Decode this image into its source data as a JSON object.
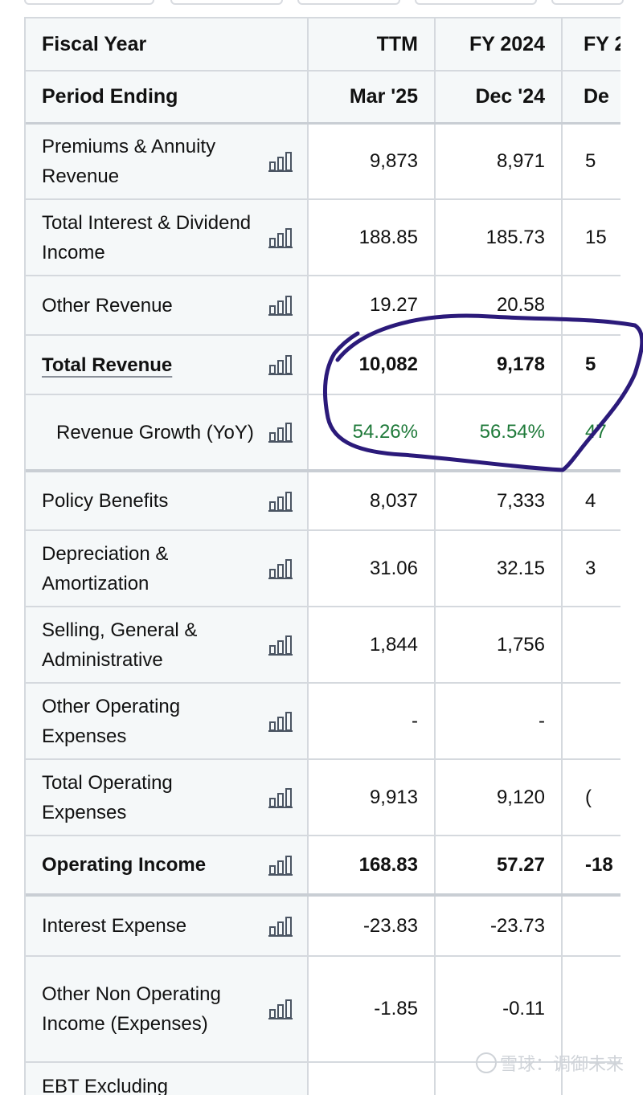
{
  "columns": {
    "fiscal_year_label": "Fiscal Year",
    "period_ending_label": "Period Ending",
    "fiscal_years": [
      "TTM",
      "FY 2024",
      "FY 2"
    ],
    "periods": [
      "Mar '25",
      "Dec '24",
      "De"
    ]
  },
  "rows": [
    {
      "label": "Premiums & Annuity Revenue",
      "ttm": "9,873",
      "fy2024": "8,971",
      "fy_prev": "5"
    },
    {
      "label": "Total Interest & Dividend Income",
      "ttm": "188.85",
      "fy2024": "185.73",
      "fy_prev": "15"
    },
    {
      "label": "Other Revenue",
      "ttm": "19.27",
      "fy2024": "20.58",
      "fy_prev": ""
    },
    {
      "label": "Total Revenue",
      "ttm": "10,082",
      "fy2024": "9,178",
      "fy_prev": "5"
    },
    {
      "label": "Revenue Growth (YoY)",
      "ttm": "54.26%",
      "fy2024": "56.54%",
      "fy_prev": "47"
    },
    {
      "label": "Policy Benefits",
      "ttm": "8,037",
      "fy2024": "7,333",
      "fy_prev": "4"
    },
    {
      "label": "Depreciation & Amortization",
      "ttm": "31.06",
      "fy2024": "32.15",
      "fy_prev": "3"
    },
    {
      "label": "Selling, General & Administrative",
      "ttm": "1,844",
      "fy2024": "1,756",
      "fy_prev": ""
    },
    {
      "label": "Other Operating Expenses",
      "ttm": "-",
      "fy2024": "-",
      "fy_prev": ""
    },
    {
      "label": "Total Operating Expenses",
      "ttm": "9,913",
      "fy2024": "9,120",
      "fy_prev": "("
    },
    {
      "label": "Operating Income",
      "ttm": "168.83",
      "fy2024": "57.27",
      "fy_prev": "-18"
    },
    {
      "label": "Interest Expense",
      "ttm": "-23.83",
      "fy2024": "-23.73",
      "fy_prev": ""
    },
    {
      "label": "Other Non Operating Income (Expenses)",
      "ttm": "-1.85",
      "fy2024": "-0.11",
      "fy_prev": ""
    },
    {
      "label": "EBT Excluding",
      "ttm": "",
      "fy2024": "",
      "fy_prev": ""
    }
  ],
  "annotation": {
    "color": "#2b1a7a"
  },
  "watermark": {
    "text": "雪球：调御未来"
  },
  "colors": {
    "positive": "#1f7a3a",
    "header_bg": "#f5f8f9",
    "border": "#d5d9de"
  },
  "icons": {
    "row_chart": "bar-chart-icon"
  }
}
